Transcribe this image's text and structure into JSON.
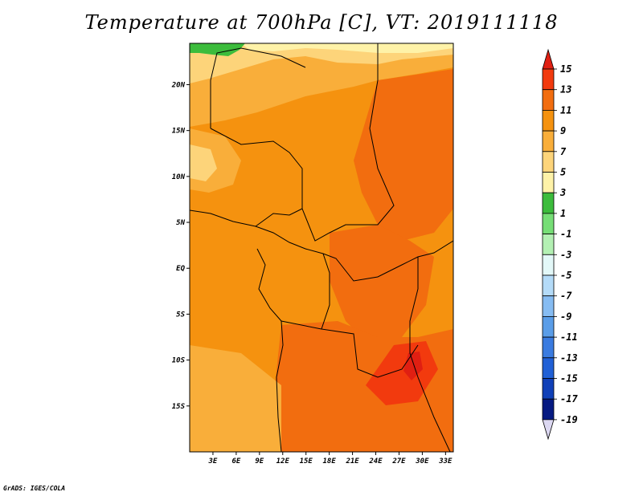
{
  "title": "Temperature at 700hPa [C], VT: 2019111118",
  "credit": "GrADS: IGES/COLA",
  "map": {
    "lat_ticks": [
      "20N",
      "15N",
      "10N",
      "5N",
      "EQ",
      "5S",
      "10S",
      "15S"
    ],
    "lon_ticks": [
      "3E",
      "6E",
      "9E",
      "12E",
      "15E",
      "18E",
      "21E",
      "24E",
      "27E",
      "30E",
      "33E"
    ],
    "lat_range": [
      -20,
      24.5
    ],
    "lon_range": [
      0,
      34
    ]
  },
  "colorbar": {
    "labels": [
      "15",
      "13",
      "11",
      "9",
      "7",
      "5",
      "3",
      "1",
      "-1",
      "-3",
      "-5",
      "-7",
      "-9",
      "-11",
      "-13",
      "-15",
      "-17",
      "-19"
    ],
    "colors": {
      "gt15": "#e01f12",
      "13_15": "#f23a0e",
      "11_13": "#f26d0f",
      "9_11": "#f5920f",
      "7_9": "#f9ae3a",
      "5_7": "#fdd47a",
      "3_5": "#fef2a8",
      "1_3": "#3cbc3c",
      "m1_1": "#76de76",
      "m3_m1": "#b3f0b3",
      "m5_m3": "#e3f8f8",
      "m7_m5": "#b4dbf8",
      "m9_m7": "#86bcf2",
      "m11_m9": "#5a9de8",
      "m13_m11": "#3a7be0",
      "m15_m13": "#2060d6",
      "m17_m15": "#1040b8",
      "m19_m17": "#061a82",
      "lt_m19": "#dcd8f2"
    }
  }
}
